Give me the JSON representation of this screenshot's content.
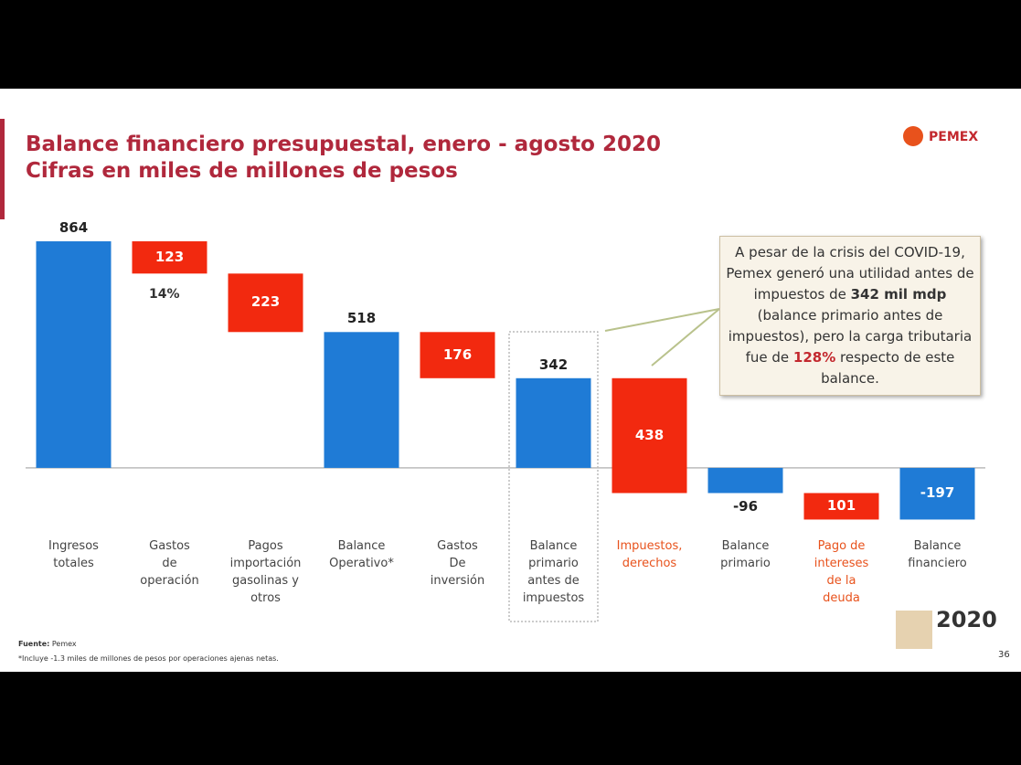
{
  "chart_data": {
    "type": "waterfall",
    "title": "Balance financiero presupuestal, enero - agosto 2020",
    "subtitle": "Cifras en miles de millones de pesos",
    "categories": [
      "Ingresos\ntotales",
      "Gastos\nde\noperación",
      "Pagos\nimportación\ngasolinas y\notros",
      "Balance\nOperativo*",
      "Gastos\nDe\ninversión",
      "Balance\nprimario\nantes de\nimpuestos",
      "Impuestos,\nderechos",
      "Balance\nprimario",
      "Pago de\nintereses\nde la\ndeuda",
      "Balance\nfinanciero"
    ],
    "values": [
      864,
      123,
      223,
      518,
      176,
      342,
      438,
      -96,
      101,
      -197
    ],
    "measures": [
      "total",
      "decrease",
      "decrease",
      "total",
      "decrease",
      "total",
      "decrease",
      "total",
      "decrease",
      "total"
    ],
    "colors": {
      "total": "#1f7bd6",
      "decrease": "#f2290f"
    },
    "category_colors": [
      "#444444",
      "#444444",
      "#444444",
      "#444444",
      "#444444",
      "#444444",
      "#e8521c",
      "#444444",
      "#e8521c",
      "#444444"
    ],
    "ylim": [
      -300,
      1000
    ],
    "annotation": "14%",
    "callout": [
      "A pesar de la crisis del COVID-19, Pemex generó una utilidad antes de impuestos de ",
      "342 mil mdp",
      " (balance primario antes de impuestos), pero la carga tributaria fue de ",
      "128%",
      " respecto de este balance."
    ]
  },
  "logo": "PEMEX",
  "badge": "2020",
  "footer": {
    "source_label": "Fuente:",
    "source": "Pemex",
    "note": "*Incluye -1.3 miles de millones de pesos por operaciones ajenas netas."
  },
  "page_number": "36"
}
